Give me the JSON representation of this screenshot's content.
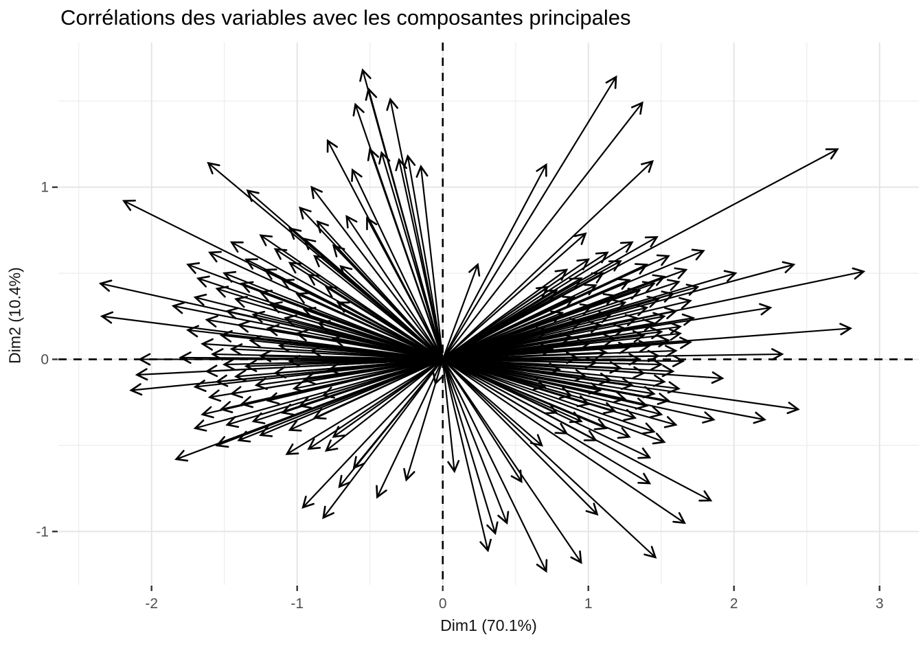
{
  "chart_data": {
    "type": "scatter",
    "mark": "arrows-from-origin",
    "title": "Corrélations des variables avec les composantes principales",
    "xlabel": "Dim1 (70.1%)",
    "ylabel": "Dim2 (10.4%)",
    "xlim": [
      -2.64,
      3.27
    ],
    "ylim": [
      -1.31,
      1.84
    ],
    "grid": "on",
    "legend": "none",
    "x_ticks": {
      "values": [
        -2,
        -1,
        0,
        1,
        2,
        3
      ],
      "labels": [
        "-2",
        "-1",
        "0",
        "1",
        "2",
        "3"
      ]
    },
    "y_ticks": {
      "values": [
        -1,
        0,
        1
      ],
      "labels": [
        "-1",
        "0",
        "1"
      ]
    },
    "x_minor_ticks": [
      -2.5,
      -1.5,
      -0.5,
      0.5,
      1.5,
      2.5
    ],
    "y_minor_ticks": [
      -0.5,
      0.5,
      1.5
    ],
    "reference_lines": [
      {
        "axis": "vertical",
        "value": 0,
        "style": "dashed"
      },
      {
        "axis": "horizontal",
        "value": 0,
        "style": "dashed"
      }
    ],
    "origin": [
      0,
      0
    ],
    "arrows": [
      [
        1.47,
        0.71
      ],
      [
        1.3,
        0.68
      ],
      [
        1.13,
        0.62
      ],
      [
        1.79,
        0.63
      ],
      [
        1.55,
        0.6
      ],
      [
        1.0,
        0.58
      ],
      [
        1.22,
        0.57
      ],
      [
        1.4,
        0.55
      ],
      [
        2.41,
        0.55
      ],
      [
        0.85,
        0.52
      ],
      [
        1.67,
        0.52
      ],
      [
        2.01,
        0.5
      ],
      [
        2.89,
        0.51
      ],
      [
        1.1,
        0.5
      ],
      [
        1.52,
        0.48
      ],
      [
        0.95,
        0.47
      ],
      [
        1.28,
        0.46
      ],
      [
        1.62,
        0.45
      ],
      [
        1.45,
        0.44
      ],
      [
        1.05,
        0.43
      ],
      [
        1.75,
        0.42
      ],
      [
        0.78,
        0.4
      ],
      [
        1.35,
        0.4
      ],
      [
        1.58,
        0.38
      ],
      [
        1.18,
        0.37
      ],
      [
        0.9,
        0.36
      ],
      [
        1.48,
        0.35
      ],
      [
        1.7,
        0.34
      ],
      [
        1.25,
        0.33
      ],
      [
        2.25,
        0.3
      ],
      [
        1.02,
        0.31
      ],
      [
        1.4,
        0.3
      ],
      [
        1.6,
        0.28
      ],
      [
        0.82,
        0.27
      ],
      [
        1.15,
        0.26
      ],
      [
        1.52,
        0.25
      ],
      [
        1.33,
        0.24
      ],
      [
        1.72,
        0.24
      ],
      [
        0.95,
        0.22
      ],
      [
        1.45,
        0.21
      ],
      [
        1.08,
        0.2
      ],
      [
        1.63,
        0.19
      ],
      [
        1.25,
        0.18
      ],
      [
        2.8,
        0.18
      ],
      [
        0.72,
        0.17
      ],
      [
        1.5,
        0.16
      ],
      [
        1.63,
        0.15
      ],
      [
        1.38,
        0.14
      ],
      [
        0.88,
        0.13
      ],
      [
        1.18,
        0.12
      ],
      [
        1.55,
        0.11
      ],
      [
        1.7,
        0.1
      ],
      [
        1.0,
        0.09
      ],
      [
        1.42,
        0.08
      ],
      [
        1.28,
        0.07
      ],
      [
        0.75,
        0.06
      ],
      [
        1.6,
        0.05
      ],
      [
        1.12,
        0.04
      ],
      [
        2.33,
        0.03
      ],
      [
        1.48,
        0.02
      ],
      [
        0.92,
        0.01
      ],
      [
        1.35,
        0.0
      ],
      [
        1.65,
        -0.01
      ],
      [
        1.05,
        -0.02
      ],
      [
        1.5,
        -0.03
      ],
      [
        1.22,
        -0.05
      ],
      [
        0.8,
        -0.06
      ],
      [
        1.58,
        -0.07
      ],
      [
        1.38,
        -0.08
      ],
      [
        0.98,
        -0.1
      ],
      [
        1.92,
        -0.11
      ],
      [
        1.15,
        -0.12
      ],
      [
        1.52,
        -0.13
      ],
      [
        1.3,
        -0.15
      ],
      [
        0.7,
        -0.16
      ],
      [
        1.62,
        -0.17
      ],
      [
        1.08,
        -0.18
      ],
      [
        1.45,
        -0.2
      ],
      [
        0.88,
        -0.21
      ],
      [
        1.25,
        -0.23
      ],
      [
        1.55,
        -0.24
      ],
      [
        1.0,
        -0.26
      ],
      [
        1.4,
        -0.27
      ],
      [
        2.44,
        -0.29
      ],
      [
        1.18,
        -0.3
      ],
      [
        0.78,
        -0.31
      ],
      [
        1.5,
        -0.32
      ],
      [
        1.32,
        -0.34
      ],
      [
        2.21,
        -0.35
      ],
      [
        1.86,
        -0.35
      ],
      [
        0.95,
        -0.36
      ],
      [
        1.6,
        -0.38
      ],
      [
        1.12,
        -0.4
      ],
      [
        1.45,
        -0.42
      ],
      [
        0.85,
        -0.43
      ],
      [
        1.28,
        -0.45
      ],
      [
        1.05,
        -0.47
      ],
      [
        1.52,
        -0.48
      ],
      [
        0.68,
        -0.5
      ],
      [
        2.71,
        1.22
      ],
      [
        1.19,
        1.64
      ],
      [
        1.37,
        1.49
      ],
      [
        1.44,
        1.15
      ],
      [
        0.98,
        0.73
      ],
      [
        0.71,
        1.13
      ],
      [
        0.72,
        0.42
      ],
      [
        0.24,
        0.55
      ],
      [
        0.54,
        -0.71
      ],
      [
        0.31,
        -1.11
      ],
      [
        0.36,
        -1.01
      ],
      [
        0.44,
        -0.95
      ],
      [
        0.71,
        -1.23
      ],
      [
        0.95,
        -1.18
      ],
      [
        1.06,
        -0.9
      ],
      [
        1.46,
        -1.15
      ],
      [
        1.66,
        -0.95
      ],
      [
        1.84,
        -0.82
      ],
      [
        1.42,
        -0.72
      ],
      [
        1.42,
        -0.57
      ],
      [
        0.08,
        -0.65
      ],
      [
        -0.05,
        -0.14
      ],
      [
        -0.86,
        0.8
      ],
      [
        -1.05,
        0.76
      ],
      [
        -0.66,
        0.83
      ],
      [
        -0.52,
        0.82
      ],
      [
        -1.25,
        0.72
      ],
      [
        -0.95,
        0.7
      ],
      [
        -1.45,
        0.68
      ],
      [
        -0.75,
        0.66
      ],
      [
        -1.15,
        0.64
      ],
      [
        -1.6,
        0.62
      ],
      [
        -0.88,
        0.6
      ],
      [
        -1.35,
        0.58
      ],
      [
        -1.05,
        0.56
      ],
      [
        -1.75,
        0.55
      ],
      [
        -0.7,
        0.54
      ],
      [
        -1.22,
        0.52
      ],
      [
        -1.5,
        0.5
      ],
      [
        -0.92,
        0.49
      ],
      [
        -1.68,
        0.47
      ],
      [
        -1.1,
        0.46
      ],
      [
        -1.38,
        0.44
      ],
      [
        -2.35,
        0.44
      ],
      [
        -0.8,
        0.42
      ],
      [
        -1.55,
        0.41
      ],
      [
        -1.25,
        0.39
      ],
      [
        -1.0,
        0.38
      ],
      [
        -1.7,
        0.36
      ],
      [
        -1.42,
        0.35
      ],
      [
        -0.72,
        0.33
      ],
      [
        -1.18,
        0.32
      ],
      [
        -1.85,
        0.31
      ],
      [
        -0.95,
        0.29
      ],
      [
        -1.48,
        0.28
      ],
      [
        -1.3,
        0.26
      ],
      [
        -2.34,
        0.25
      ],
      [
        -1.08,
        0.24
      ],
      [
        -1.62,
        0.23
      ],
      [
        -0.85,
        0.21
      ],
      [
        -1.4,
        0.2
      ],
      [
        -1.2,
        0.18
      ],
      [
        -1.75,
        0.17
      ],
      [
        -1.0,
        0.15
      ],
      [
        -1.52,
        0.14
      ],
      [
        -0.75,
        0.12
      ],
      [
        -1.32,
        0.11
      ],
      [
        -1.65,
        0.09
      ],
      [
        -1.12,
        0.08
      ],
      [
        -1.45,
        0.06
      ],
      [
        -0.9,
        0.05
      ],
      [
        -1.58,
        0.03
      ],
      [
        -1.25,
        0.02
      ],
      [
        -1.8,
        0.01
      ],
      [
        -2.08,
        0.0
      ],
      [
        -1.05,
        -0.01
      ],
      [
        -1.5,
        -0.03
      ],
      [
        -1.35,
        -0.04
      ],
      [
        -0.78,
        -0.06
      ],
      [
        -1.62,
        -0.07
      ],
      [
        -1.15,
        -0.08
      ],
      [
        -2.1,
        -0.09
      ],
      [
        -1.42,
        -0.1
      ],
      [
        -0.95,
        -0.12
      ],
      [
        -1.55,
        -0.13
      ],
      [
        -1.28,
        -0.15
      ],
      [
        -1.7,
        -0.16
      ],
      [
        -1.02,
        -0.17
      ],
      [
        -2.14,
        -0.18
      ],
      [
        -1.45,
        -0.2
      ],
      [
        -0.82,
        -0.21
      ],
      [
        -1.6,
        -0.22
      ],
      [
        -1.2,
        -0.24
      ],
      [
        -1.38,
        -0.26
      ],
      [
        -0.98,
        -0.27
      ],
      [
        -1.52,
        -0.29
      ],
      [
        -1.1,
        -0.31
      ],
      [
        -1.65,
        -0.32
      ],
      [
        -0.88,
        -0.34
      ],
      [
        -1.3,
        -0.36
      ],
      [
        -1.48,
        -0.38
      ],
      [
        -1.7,
        -0.4
      ],
      [
        -1.05,
        -0.41
      ],
      [
        -1.25,
        -0.44
      ],
      [
        -0.75,
        -0.45
      ],
      [
        -1.4,
        -0.47
      ],
      [
        -1.55,
        -0.5
      ],
      [
        -1.07,
        -0.55
      ],
      [
        -0.92,
        -0.52
      ],
      [
        -2.19,
        0.92
      ],
      [
        -1.61,
        1.14
      ],
      [
        -1.34,
        0.98
      ],
      [
        -0.9,
        1.0
      ],
      [
        -0.98,
        0.88
      ],
      [
        -0.55,
        1.68
      ],
      [
        -0.51,
        1.57
      ],
      [
        -0.6,
        1.48
      ],
      [
        -0.36,
        1.51
      ],
      [
        -0.79,
        1.27
      ],
      [
        -0.5,
        1.22
      ],
      [
        -0.42,
        1.2
      ],
      [
        -0.3,
        1.16
      ],
      [
        -0.24,
        1.18
      ],
      [
        -0.15,
        1.12
      ],
      [
        -0.62,
        1.1
      ],
      [
        -1.83,
        -0.58
      ],
      [
        -0.96,
        -0.86
      ],
      [
        -0.82,
        -0.92
      ],
      [
        -0.8,
        -0.53
      ],
      [
        -0.71,
        -0.74
      ],
      [
        -0.25,
        -0.7
      ],
      [
        -0.61,
        -0.63
      ],
      [
        -0.45,
        -0.8
      ]
    ]
  },
  "colors": {
    "arrow": "#000000",
    "reference_line": "#000000",
    "grid_major": "#e5e5e5",
    "grid_minor": "#f0f0f0",
    "tick_mark": "#333333",
    "tick_text": "#4d4d4d",
    "title_text": "#000000",
    "axis_title_text": "#111111",
    "background": "#ffffff"
  }
}
